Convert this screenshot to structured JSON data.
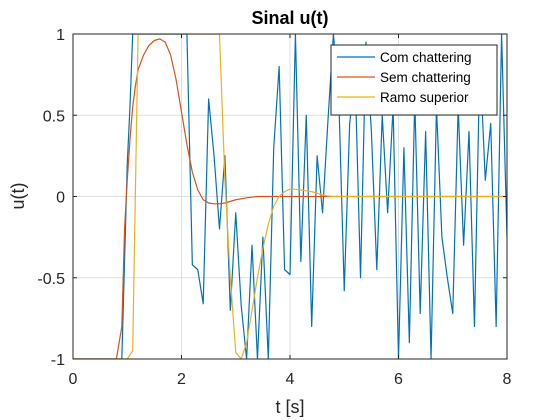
{
  "chart_data": {
    "type": "line",
    "title": "Sinal u(t)",
    "xlabel": "t [s]",
    "ylabel": "u(t)",
    "xlim": [
      0,
      8
    ],
    "ylim": [
      -1,
      1
    ],
    "xticks": [
      0,
      2,
      4,
      6,
      8
    ],
    "xtick_labels": [
      "0",
      "2",
      "4",
      "6",
      "8"
    ],
    "yticks": [
      -1,
      -0.5,
      0,
      0.5,
      1
    ],
    "ytick_labels": [
      "-1",
      "-0.5",
      "0",
      "0.5",
      "1"
    ],
    "grid": true,
    "legend_position": "top-right",
    "series": [
      {
        "name": "Com chattering",
        "color": "#0072BD",
        "x": [
          0,
          0.8,
          0.9,
          1.0,
          1.05,
          1.1,
          1.15,
          1.2,
          1.3,
          1.4,
          1.5,
          1.6,
          1.7,
          1.8,
          1.9,
          2.0,
          2.1,
          2.2,
          2.3,
          2.4,
          2.5,
          2.6,
          2.7,
          2.8,
          2.9,
          3.0,
          3.1,
          3.2,
          3.3,
          3.4,
          3.5,
          3.6,
          3.7,
          3.8,
          3.9,
          4.0,
          4.1,
          4.2,
          4.3,
          4.4,
          4.5,
          4.6,
          4.7,
          4.8,
          4.9,
          5.0,
          5.1,
          5.2,
          5.3,
          5.4,
          5.5,
          5.6,
          5.7,
          5.8,
          5.9,
          6.0,
          6.1,
          6.2,
          6.3,
          6.4,
          6.5,
          6.6,
          6.7,
          6.8,
          6.9,
          7.0,
          7.1,
          7.2,
          7.3,
          7.4,
          7.5,
          7.6,
          7.7,
          7.8,
          7.9,
          8.0
        ],
        "y": [
          -1,
          -1,
          -1,
          0.2,
          0.55,
          1,
          1,
          1,
          1,
          1,
          1,
          1,
          1,
          1,
          1,
          1,
          1,
          -0.42,
          -0.45,
          -0.66,
          0.6,
          0.25,
          -0.2,
          0.25,
          -0.7,
          -0.1,
          -0.67,
          -1,
          -0.3,
          -1,
          -0.25,
          -1,
          0.3,
          0.8,
          -0.45,
          -0.48,
          1,
          -0.4,
          0.5,
          -0.8,
          0.25,
          -0.1,
          0.47,
          1,
          0.6,
          -0.58,
          0.45,
          0.75,
          -0.5,
          0.95,
          0.4,
          -0.45,
          0.5,
          -0.1,
          0.55,
          -1,
          0.3,
          -0.9,
          0.6,
          -0.72,
          0.4,
          -1,
          0.55,
          -0.25,
          -0.5,
          -0.72,
          0.55,
          -0.3,
          0.4,
          -0.8,
          0.85,
          0.1,
          0.45,
          -0.8,
          1,
          -0.25
        ]
      },
      {
        "name": "Sem chattering",
        "color": "#D95319",
        "x": [
          0,
          0.8,
          0.9,
          0.95,
          1.0,
          1.05,
          1.1,
          1.15,
          1.2,
          1.3,
          1.4,
          1.5,
          1.6,
          1.7,
          1.8,
          1.9,
          2.0,
          2.1,
          2.2,
          2.3,
          2.4,
          2.5,
          2.6,
          2.7,
          2.8,
          2.9,
          3.0,
          3.2,
          3.4,
          3.6,
          3.8,
          4.0,
          4.5,
          5.0,
          6.0,
          7.0,
          8.0
        ],
        "y": [
          -1,
          -1,
          -0.8,
          -0.2,
          0.1,
          0.35,
          0.55,
          0.68,
          0.78,
          0.87,
          0.93,
          0.96,
          0.97,
          0.95,
          0.87,
          0.72,
          0.52,
          0.32,
          0.15,
          0.04,
          -0.02,
          -0.04,
          -0.045,
          -0.045,
          -0.04,
          -0.03,
          -0.02,
          -0.008,
          0,
          0,
          0,
          0,
          0,
          0,
          0,
          0,
          0
        ]
      },
      {
        "name": "Ramo superior",
        "color": "#EDB120",
        "x": [
          0,
          1.0,
          1.1,
          1.2,
          1.3,
          2.6,
          2.7,
          2.8,
          2.9,
          3.0,
          3.1,
          3.2,
          3.3,
          3.4,
          3.5,
          3.6,
          3.7,
          3.8,
          3.9,
          4.0,
          4.1,
          4.2,
          4.3,
          4.4,
          4.5,
          4.6,
          4.7,
          4.8,
          5.0,
          6.0,
          7.0,
          8.0
        ],
        "y": [
          -1,
          -1,
          -0.95,
          1,
          1,
          1,
          1,
          0.1,
          -0.5,
          -0.96,
          -1,
          -0.9,
          -0.7,
          -0.5,
          -0.32,
          -0.17,
          -0.06,
          0,
          0.03,
          0.045,
          0.045,
          0.04,
          0.035,
          0.03,
          0.02,
          0.01,
          0.003,
          0,
          0,
          0,
          0,
          0
        ]
      }
    ]
  }
}
